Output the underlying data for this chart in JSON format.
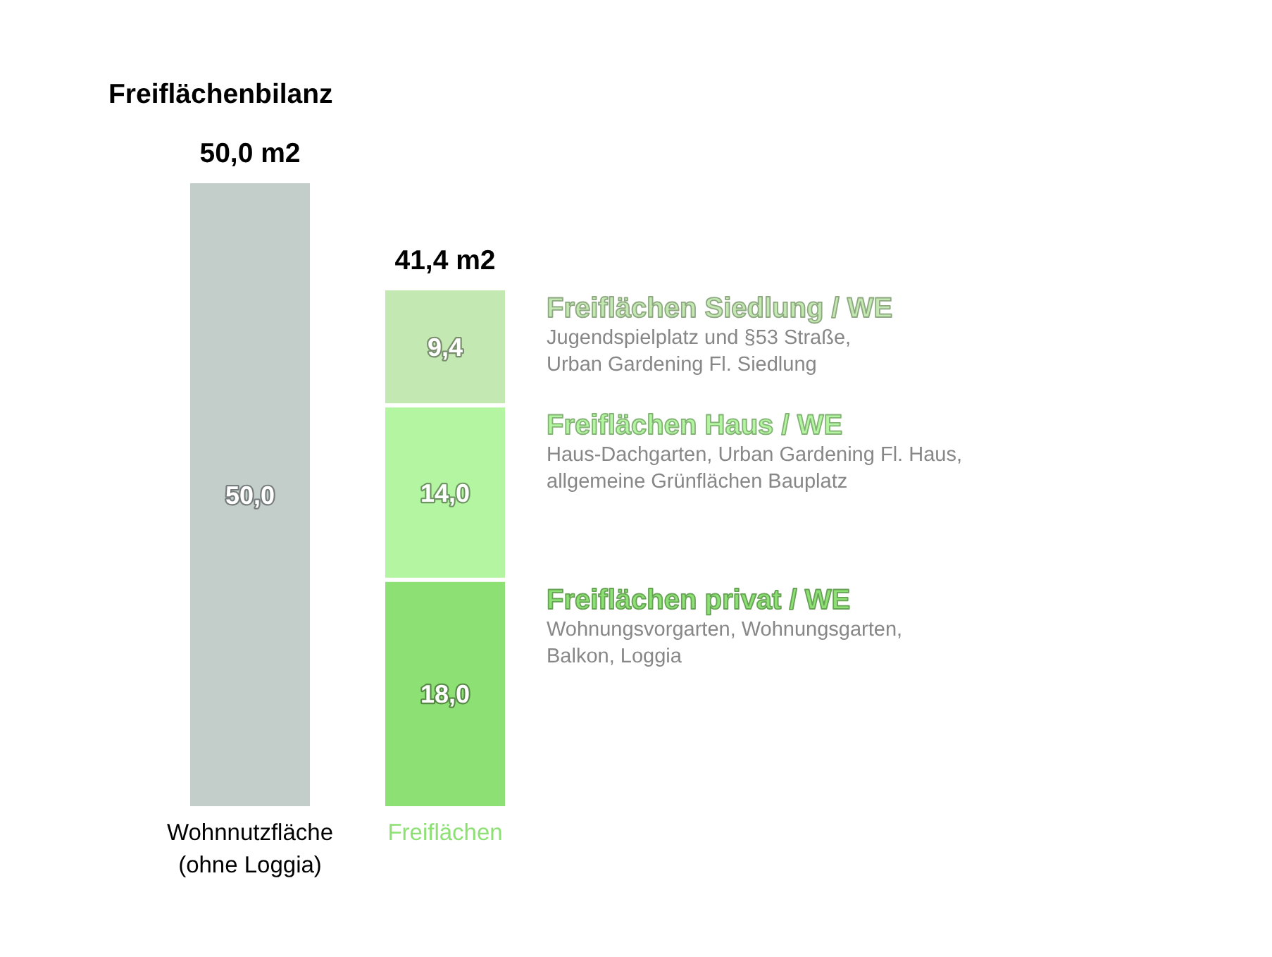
{
  "chart_data": {
    "type": "bar",
    "title": "Freiflächenbilanz",
    "stacked": true,
    "tick_labels": "x",
    "ylim": [
      0,
      50
    ],
    "categories": [
      "Wohnnutzfläche (ohne Loggia)",
      "Freiflächen"
    ],
    "series": [
      {
        "color": "#c3cdca",
        "values": [
          50.0,
          null
        ],
        "value_labels": [
          "50,0",
          null
        ]
      },
      {
        "name": "Freiflächen privat / WE",
        "color": "#8de074",
        "values": [
          null,
          18.0
        ],
        "value_labels": [
          null,
          "18,0"
        ]
      },
      {
        "name": "Freiflächen Haus / WE",
        "color": "#b3f5a0",
        "values": [
          null,
          14.0
        ],
        "value_labels": [
          null,
          "14,0"
        ]
      },
      {
        "name": "Freiflächen Siedlung / WE",
        "color": "#c4e8b2",
        "values": [
          null,
          9.4
        ],
        "value_labels": [
          null,
          "9,4"
        ]
      }
    ],
    "totals": [
      "50,0 m2",
      "41,4 m2"
    ],
    "annotations": [
      "Wohnungsvorgarten, Wohnungsgarten,\nBalkon, Loggia",
      "Haus-Dachgarten, Urban Gardening Fl. Haus,\nallgemeine Grünflächen Bauplatz",
      "Jugendspielplatz und §53 Straße,\nUrban Gardening Fl. Siedlung"
    ]
  }
}
